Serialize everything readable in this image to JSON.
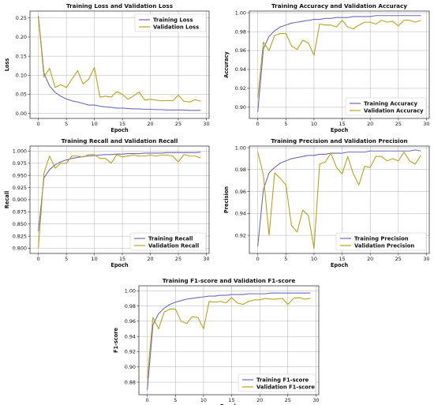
{
  "colors": {
    "train": "#6a6ab8",
    "val": "#b5a518"
  },
  "chart_data": [
    {
      "type": "line",
      "title": "Training Loss and Validation Loss",
      "xlabel": "Epoch",
      "ylabel": "Loss",
      "xlim": [
        -1.5,
        30.5
      ],
      "ylim": [
        -0.013,
        0.268
      ],
      "xticks": [
        0,
        5,
        10,
        15,
        20,
        25,
        30
      ],
      "xtick_labels": [
        "0",
        "5",
        "10",
        "15",
        "20",
        "25",
        "30"
      ],
      "yticks": [
        0.0,
        0.05,
        0.1,
        0.15,
        0.2,
        0.25
      ],
      "ytick_labels": [
        "0.00",
        "0.05",
        "0.10",
        "0.15",
        "0.20",
        "0.25"
      ],
      "grid": true,
      "legend_position": "top-right",
      "x": [
        0,
        1,
        2,
        3,
        4,
        5,
        6,
        7,
        8,
        9,
        10,
        11,
        12,
        13,
        14,
        15,
        16,
        17,
        18,
        19,
        20,
        21,
        22,
        23,
        24,
        25,
        26,
        27,
        28,
        29
      ],
      "series": [
        {
          "name": "Training Loss",
          "color_key": "train",
          "values": [
            0.255,
            0.105,
            0.072,
            0.055,
            0.045,
            0.038,
            0.033,
            0.03,
            0.026,
            0.022,
            0.022,
            0.019,
            0.017,
            0.016,
            0.014,
            0.014,
            0.013,
            0.012,
            0.012,
            0.011,
            0.011,
            0.01,
            0.01,
            0.009,
            0.009,
            0.009,
            0.009,
            0.008,
            0.008,
            0.008
          ]
        },
        {
          "name": "Validation Loss",
          "color_key": "val",
          "values": [
            0.252,
            0.095,
            0.118,
            0.068,
            0.075,
            0.068,
            0.09,
            0.112,
            0.077,
            0.09,
            0.12,
            0.043,
            0.045,
            0.043,
            0.057,
            0.05,
            0.037,
            0.046,
            0.056,
            0.035,
            0.037,
            0.035,
            0.033,
            0.034,
            0.033,
            0.048,
            0.032,
            0.03,
            0.036,
            0.032
          ]
        }
      ]
    },
    {
      "type": "line",
      "title": "Training Accuracy and Validation Accuracy",
      "xlabel": "Epoch",
      "ylabel": "Accuracy",
      "xlim": [
        -1.5,
        30.5
      ],
      "ylim": [
        0.8882,
        1.0018
      ],
      "xticks": [
        0,
        5,
        10,
        15,
        20,
        25,
        30
      ],
      "xtick_labels": [
        "0",
        "5",
        "10",
        "15",
        "20",
        "25",
        "30"
      ],
      "yticks": [
        0.9,
        0.92,
        0.94,
        0.96,
        0.98,
        1.0
      ],
      "ytick_labels": [
        "0.90",
        "0.92",
        "0.94",
        "0.96",
        "0.98",
        "1.00"
      ],
      "grid": true,
      "legend_position": "bottom-right",
      "x": [
        0,
        1,
        2,
        3,
        4,
        5,
        6,
        7,
        8,
        9,
        10,
        11,
        12,
        13,
        14,
        15,
        16,
        17,
        18,
        19,
        20,
        21,
        22,
        23,
        24,
        25,
        26,
        27,
        28,
        29
      ],
      "series": [
        {
          "name": "Training Accuracy",
          "color_key": "train",
          "values": [
            0.895,
            0.962,
            0.975,
            0.981,
            0.985,
            0.987,
            0.989,
            0.99,
            0.991,
            0.992,
            0.993,
            0.993,
            0.994,
            0.994,
            0.995,
            0.995,
            0.995,
            0.996,
            0.996,
            0.996,
            0.996,
            0.997,
            0.997,
            0.997,
            0.997,
            0.997,
            0.997,
            0.997,
            0.997,
            0.997
          ]
        },
        {
          "name": "Validation Accuracy",
          "color_key": "val",
          "values": [
            0.91,
            0.969,
            0.96,
            0.976,
            0.978,
            0.978,
            0.965,
            0.961,
            0.971,
            0.968,
            0.955,
            0.988,
            0.987,
            0.987,
            0.985,
            0.992,
            0.985,
            0.983,
            0.987,
            0.99,
            0.99,
            0.988,
            0.992,
            0.99,
            0.991,
            0.986,
            0.992,
            0.992,
            0.99,
            0.992
          ]
        }
      ]
    },
    {
      "type": "line",
      "title": "Training Recall and Validation Recall",
      "xlabel": "Epoch",
      "ylabel": "Recall",
      "xlim": [
        -1.5,
        30.5
      ],
      "ylim": [
        0.7895,
        1.0105
      ],
      "xticks": [
        0,
        5,
        10,
        15,
        20,
        25,
        30
      ],
      "xtick_labels": [
        "0",
        "5",
        "10",
        "15",
        "20",
        "25",
        "30"
      ],
      "yticks": [
        0.8,
        0.825,
        0.85,
        0.875,
        0.9,
        0.925,
        0.95,
        0.975,
        1.0
      ],
      "ytick_labels": [
        "0.800",
        "0.825",
        "0.850",
        "0.875",
        "0.900",
        "0.925",
        "0.950",
        "0.975",
        "1.000"
      ],
      "grid": true,
      "legend_position": "bottom-right",
      "x": [
        0,
        1,
        2,
        3,
        4,
        5,
        6,
        7,
        8,
        9,
        10,
        11,
        12,
        13,
        14,
        15,
        16,
        17,
        18,
        19,
        20,
        21,
        22,
        23,
        24,
        25,
        26,
        27,
        28,
        29
      ],
      "series": [
        {
          "name": "Training Recall",
          "color_key": "train",
          "values": [
            0.835,
            0.945,
            0.962,
            0.972,
            0.978,
            0.982,
            0.985,
            0.987,
            0.989,
            0.99,
            0.991,
            0.992,
            0.993,
            0.993,
            0.994,
            0.994,
            0.995,
            0.995,
            0.995,
            0.996,
            0.996,
            0.996,
            0.996,
            0.997,
            0.997,
            0.997,
            0.997,
            0.997,
            0.997,
            0.998
          ]
        },
        {
          "name": "Validation Recall",
          "color_key": "val",
          "values": [
            0.8,
            0.955,
            0.99,
            0.965,
            0.975,
            0.975,
            0.99,
            0.99,
            0.988,
            0.993,
            0.993,
            0.985,
            0.985,
            0.975,
            0.993,
            0.988,
            0.99,
            0.992,
            0.99,
            0.99,
            0.992,
            0.99,
            0.992,
            0.992,
            0.99,
            0.978,
            0.993,
            0.99,
            0.99,
            0.986
          ]
        }
      ]
    },
    {
      "type": "line",
      "title": "Training Precision and Validation Precision",
      "xlabel": "Epoch",
      "ylabel": "Precision",
      "xlim": [
        -1.5,
        30.5
      ],
      "ylim": [
        0.9035,
        1.0015
      ],
      "xticks": [
        0,
        5,
        10,
        15,
        20,
        25,
        30
      ],
      "xtick_labels": [
        "0",
        "5",
        "10",
        "15",
        "20",
        "25",
        "30"
      ],
      "yticks": [
        0.92,
        0.94,
        0.96,
        0.98,
        1.0
      ],
      "ytick_labels": [
        "0.92",
        "0.94",
        "0.96",
        "0.98",
        "1.00"
      ],
      "grid": true,
      "legend_position": "bottom-right",
      "x": [
        0,
        1,
        2,
        3,
        4,
        5,
        6,
        7,
        8,
        9,
        10,
        11,
        12,
        13,
        14,
        15,
        16,
        17,
        18,
        19,
        20,
        21,
        22,
        23,
        24,
        25,
        26,
        27,
        28,
        29
      ],
      "series": [
        {
          "name": "Training Precision",
          "color_key": "train",
          "values": [
            0.91,
            0.962,
            0.977,
            0.982,
            0.986,
            0.988,
            0.99,
            0.991,
            0.992,
            0.993,
            0.993,
            0.994,
            0.994,
            0.995,
            0.995,
            0.995,
            0.996,
            0.996,
            0.996,
            0.996,
            0.997,
            0.997,
            0.997,
            0.997,
            0.997,
            0.997,
            0.997,
            0.997,
            0.998,
            0.997
          ]
        },
        {
          "name": "Validation Precision",
          "color_key": "val",
          "values": [
            0.996,
            0.975,
            0.92,
            0.977,
            0.972,
            0.966,
            0.929,
            0.923,
            0.943,
            0.938,
            0.908,
            0.985,
            0.987,
            0.995,
            0.982,
            0.976,
            0.992,
            0.976,
            0.966,
            0.983,
            0.982,
            0.992,
            0.992,
            0.988,
            0.99,
            0.988,
            0.996,
            0.988,
            0.985,
            0.993
          ]
        }
      ]
    },
    {
      "type": "line",
      "title": "Training F1-score and Validation F1-score",
      "xlabel": "Epoch",
      "ylabel": "F1-score",
      "xlim": [
        -1.5,
        30.5
      ],
      "ylim": [
        0.8635,
        1.0065
      ],
      "xticks": [
        0,
        5,
        10,
        15,
        20,
        25,
        30
      ],
      "xtick_labels": [
        "0",
        "5",
        "10",
        "15",
        "20",
        "25",
        "30"
      ],
      "yticks": [
        0.88,
        0.9,
        0.92,
        0.94,
        0.96,
        0.98,
        1.0
      ],
      "ytick_labels": [
        "0.88",
        "0.90",
        "0.92",
        "0.94",
        "0.96",
        "0.98",
        "1.00"
      ],
      "grid": true,
      "legend_position": "bottom-right",
      "x": [
        0,
        1,
        2,
        3,
        4,
        5,
        6,
        7,
        8,
        9,
        10,
        11,
        12,
        13,
        14,
        15,
        16,
        17,
        18,
        19,
        20,
        21,
        22,
        23,
        24,
        25,
        26,
        27,
        28,
        29
      ],
      "series": [
        {
          "name": "Training F1-score",
          "color_key": "train",
          "values": [
            0.87,
            0.955,
            0.97,
            0.977,
            0.982,
            0.985,
            0.987,
            0.989,
            0.99,
            0.991,
            0.992,
            0.993,
            0.993,
            0.994,
            0.994,
            0.995,
            0.995,
            0.995,
            0.996,
            0.996,
            0.996,
            0.996,
            0.997,
            0.997,
            0.997,
            0.997,
            0.997,
            0.997,
            0.997,
            0.997
          ]
        },
        {
          "name": "Validation F1-score",
          "color_key": "val",
          "values": [
            0.885,
            0.965,
            0.95,
            0.972,
            0.976,
            0.976,
            0.96,
            0.957,
            0.966,
            0.965,
            0.95,
            0.986,
            0.985,
            0.986,
            0.984,
            0.991,
            0.984,
            0.982,
            0.986,
            0.988,
            0.988,
            0.99,
            0.989,
            0.989,
            0.99,
            0.982,
            0.99,
            0.991,
            0.989,
            0.99
          ]
        }
      ]
    }
  ]
}
